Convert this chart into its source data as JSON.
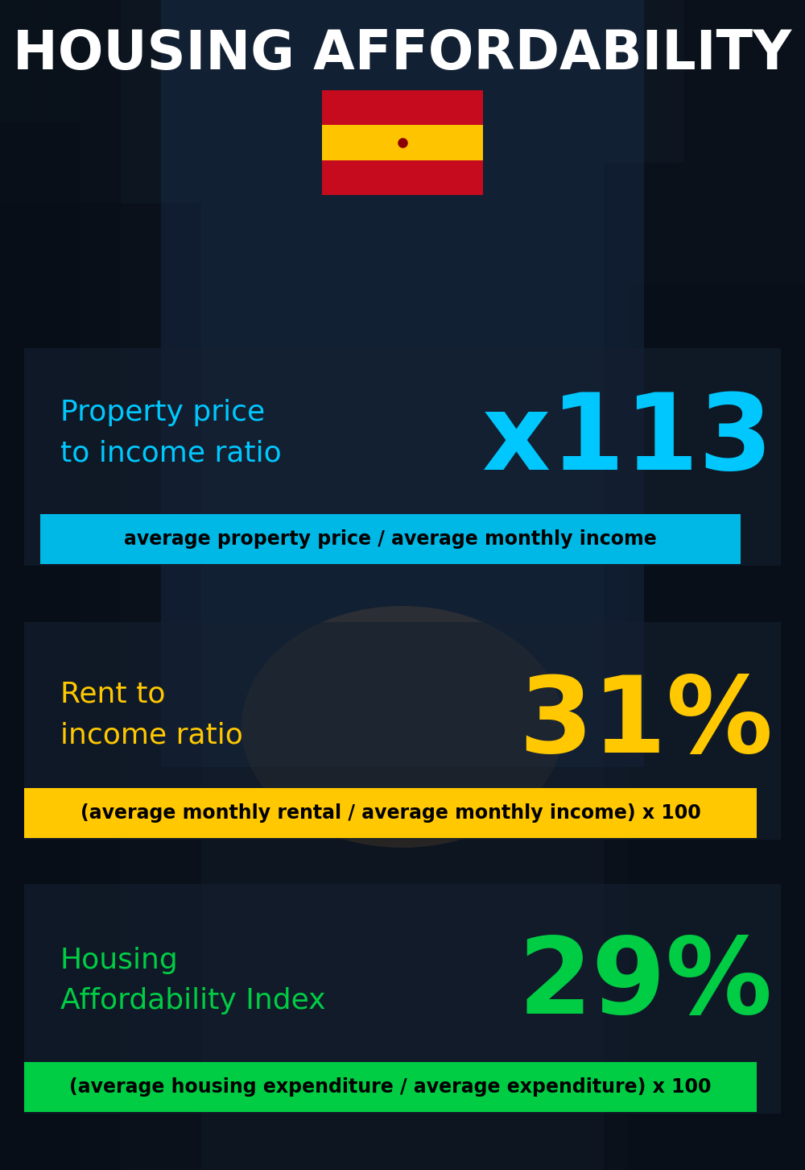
{
  "title_line1": "HOUSING AFFORDABILITY",
  "title_line2": "Spain",
  "bg_color": "#0d1620",
  "section1_label": "Property price\nto income ratio",
  "section1_value": "x113",
  "section1_label_color": "#00c8ff",
  "section1_value_color": "#00c8ff",
  "section1_band_color": "#00b8e6",
  "section1_band_text": "average property price / average monthly income",
  "section1_band_text_color": "#000000",
  "section2_label": "Rent to\nincome ratio",
  "section2_value": "31%",
  "section2_label_color": "#ffc800",
  "section2_value_color": "#ffc800",
  "section2_band_color": "#ffc800",
  "section2_band_text": "(average monthly rental / average monthly income) x 100",
  "section2_band_text_color": "#000000",
  "section3_label": "Housing\nAffordability Index",
  "section3_value": "29%",
  "section3_label_color": "#00cc44",
  "section3_value_color": "#00cc44",
  "section3_band_color": "#00cc44",
  "section3_band_text": "(average housing expenditure / average expenditure) x 100",
  "section3_band_text_color": "#000000",
  "title_color": "#ffffff",
  "title_fontsize": 48,
  "subtitle_fontsize": 46,
  "label_fontsize": 26,
  "value_fontsize": 95,
  "band_fontsize": 17,
  "panel_color": "#152030",
  "panel_alpha": 0.6
}
